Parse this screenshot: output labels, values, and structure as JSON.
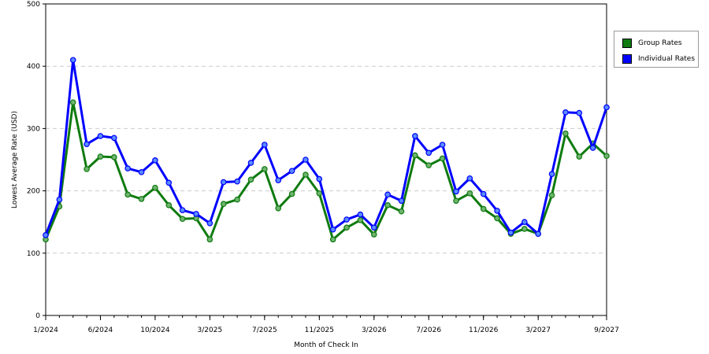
{
  "chart_data": {
    "type": "line",
    "xlabel": "Month of Check In",
    "ylabel": "Lowest Average Rate (USD)",
    "ylim": [
      0,
      500
    ],
    "yticks": [
      0,
      100,
      200,
      300,
      400,
      500
    ],
    "xticks": [
      {
        "label": "1/2024",
        "index": 0
      },
      {
        "label": "6/2024",
        "index": 4
      },
      {
        "label": "10/2024",
        "index": 8
      },
      {
        "label": "3/2025",
        "index": 12
      },
      {
        "label": "7/2025",
        "index": 16
      },
      {
        "label": "11/2025",
        "index": 20
      },
      {
        "label": "3/2026",
        "index": 24
      },
      {
        "label": "7/2026",
        "index": 28
      },
      {
        "label": "11/2026",
        "index": 32
      },
      {
        "label": "3/2027",
        "index": 36
      },
      {
        "label": "9/2027",
        "index": 41
      }
    ],
    "grid": "horizontal-dashed",
    "legend_position": "right",
    "series": [
      {
        "name": "Group Rates",
        "color": "#0f7b0f",
        "values": [
          122,
          175,
          342,
          235,
          255,
          254,
          194,
          187,
          205,
          177,
          155,
          156,
          122,
          179,
          186,
          218,
          235,
          172,
          195,
          226,
          196,
          122,
          141,
          153,
          130,
          177,
          167,
          257,
          241,
          252,
          184,
          196,
          171,
          156,
          131,
          139,
          131,
          193,
          292,
          255,
          276,
          256
        ]
      },
      {
        "name": "Individual Rates",
        "color": "#0000ff",
        "values": [
          129,
          186,
          410,
          275,
          288,
          285,
          236,
          230,
          249,
          213,
          169,
          163,
          148,
          214,
          215,
          245,
          274,
          217,
          232,
          250,
          219,
          138,
          154,
          162,
          141,
          194,
          184,
          288,
          261,
          274,
          199,
          220,
          195,
          168,
          133,
          150,
          131,
          227,
          326,
          325,
          269,
          334
        ]
      }
    ]
  }
}
